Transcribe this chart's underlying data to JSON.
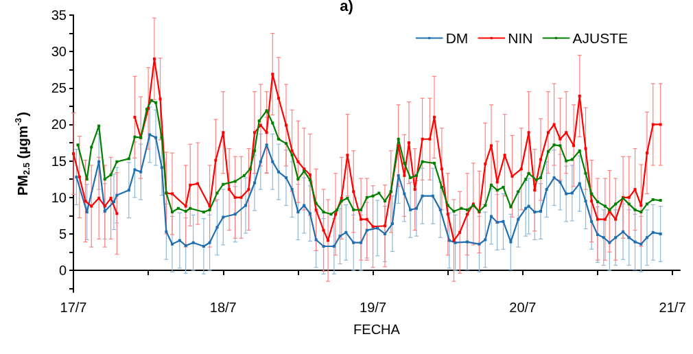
{
  "chart_data": {
    "type": "line",
    "title": "a)",
    "xlabel": "FECHA",
    "ylabel": "PM$_{2.5}$ (µgm$^{-3}$)",
    "xlim": [
      "--07-17T00:00",
      "--07-21T01:12"
    ],
    "xticks": [
      {
        "value": "--07-17",
        "label": "17/7"
      },
      {
        "value": "--07-17T12:00",
        "label": null
      },
      {
        "value": "--07-18",
        "label": "18/7"
      },
      {
        "value": "--07-18T12:00",
        "label": null
      },
      {
        "value": "--07-19",
        "label": "19/7"
      },
      {
        "value": "--07-19T12:00",
        "label": null
      },
      {
        "value": "--07-20",
        "label": "20/7"
      },
      {
        "value": "--07-20T12:00",
        "label": null
      },
      {
        "value": "--07-21",
        "label": "21/7"
      }
    ],
    "ylim": [
      -3,
      35
    ],
    "yticks": [
      {
        "value": -2.5,
        "label": null
      },
      0,
      {
        "value": 2.5,
        "label": null
      },
      5,
      {
        "value": 7.5,
        "label": null
      },
      10,
      {
        "value": 12.5,
        "label": null
      },
      15,
      {
        "value": 17.5,
        "label": null
      },
      20,
      {
        "value": 22.5,
        "label": null
      },
      25,
      {
        "value": 27.5,
        "label": null
      },
      30,
      {
        "value": 32.5,
        "label": null
      },
      35
    ],
    "grid": false,
    "legend": "top right",
    "marker": "square",
    "line_style": "solid",
    "series": [
      {
        "name": "DM",
        "color": "#1f6fb0",
        "x": [
          "--07-17T00:29",
          "--07-17T02:10",
          "--07-17T04:05",
          "--07-17T05:02",
          "--07-17T06:29",
          "--07-17T06:58",
          "--07-17T08:53",
          "--07-17T09:50",
          "--07-17T10:48",
          "--07-17T12:14",
          "--07-17T13:12",
          "--07-17T14:10",
          "--07-17T14:53",
          "--07-17T15:50",
          "--07-17T17:02",
          "--07-17T18:00",
          "--07-17T19:12",
          "--07-17T20:53",
          "--07-17T21:50",
          "--07-17T23:02",
          "--07-18T00:00",
          "--07-18T01:55",
          "--07-18T03:36",
          "--07-18T05:02",
          "--07-18T06:00",
          "--07-18T06:58",
          "--07-18T07:55",
          "--07-18T08:53",
          "--07-18T10:05",
          "--07-18T11:02",
          "--07-18T12:00",
          "--07-18T12:58",
          "--07-18T13:55",
          "--07-18T14:53",
          "--07-18T16:05",
          "--07-18T17:46",
          "--07-18T18:43",
          "--07-18T19:41",
          "--07-18T20:53",
          "--07-18T22:05",
          "--07-18T23:02",
          "--07-19T00:43",
          "--07-19T01:55",
          "--07-19T03:07",
          "--07-19T04:05",
          "--07-19T05:02",
          "--07-19T06:00",
          "--07-19T06:58",
          "--07-19T07:55",
          "--07-19T09:36",
          "--07-19T10:48",
          "--07-19T12:14",
          "--07-19T13:12",
          "--07-19T15:07",
          "--07-19T17:02",
          "--07-19T18:00",
          "--07-19T18:58",
          "--07-19T19:55",
          "--07-19T20:53",
          "--07-19T22:05",
          "--07-19T23:17",
          "--07-20T00:29",
          "--07-20T00:58",
          "--07-20T01:55",
          "--07-20T02:53",
          "--07-20T03:50",
          "--07-20T05:02",
          "--07-20T06:00",
          "--07-20T06:58",
          "--07-20T07:55",
          "--07-20T09:07",
          "--07-20T10:05",
          "--07-20T11:02",
          "--07-20T12:00",
          "--07-20T12:58",
          "--07-20T13:55",
          "--07-20T14:53",
          "--07-20T16:05",
          "--07-20T17:02",
          "--07-20T18:00",
          "--07-20T18:58",
          "--07-20T19:55",
          "--07-20T20:53",
          "--07-20T22:05"
        ],
        "values": [
          12.8,
          8.0,
          14.9,
          8.1,
          9.4,
          10.3,
          11.0,
          13.8,
          13.5,
          18.6,
          18.2,
          14.1,
          5.3,
          3.6,
          4.1,
          3.4,
          3.8,
          3.3,
          3.8,
          5.9,
          7.3,
          7.7,
          8.9,
          12.0,
          14.9,
          17.2,
          14.9,
          13.5,
          12.7,
          11.1,
          8.0,
          8.9,
          7.8,
          4.2,
          3.3,
          3.3,
          4.7,
          5.2,
          3.8,
          3.8,
          5.5,
          5.8,
          5.0,
          6.4,
          13.0,
          10.5,
          8.3,
          8.5,
          10.2,
          10.2,
          8.3,
          4.1,
          3.8,
          3.9,
          3.6,
          4.2,
          7.4,
          6.6,
          6.7,
          3.9,
          7.0,
          8.5,
          8.8,
          8.0,
          8.1,
          11.1,
          12.7,
          12.1,
          10.5,
          10.6,
          11.9,
          9.5,
          6.7,
          4.9,
          4.5,
          3.8,
          4.5,
          5.3,
          4.5,
          3.9,
          3.6,
          4.5,
          5.2,
          5.0
        ],
        "errors": [
          3.8,
          3.8,
          3.8,
          3.8,
          3.8,
          3.8,
          3.8,
          3.8,
          3.8,
          3.8,
          3.8,
          3.8,
          3.8,
          3.8,
          3.8,
          3.8,
          3.8,
          3.8,
          3.8,
          3.8,
          3.8,
          3.8,
          3.8,
          3.8,
          3.8,
          3.8,
          3.8,
          3.8,
          3.8,
          3.8,
          3.8,
          3.8,
          3.8,
          3.8,
          3.8,
          3.8,
          3.8,
          3.8,
          3.8,
          3.8,
          3.8,
          3.8,
          3.8,
          3.8,
          3.8,
          3.8,
          3.8,
          3.8,
          3.8,
          3.8,
          3.8,
          3.8,
          3.8,
          3.8,
          3.8,
          3.8,
          3.8,
          3.8,
          3.8,
          3.8,
          3.8,
          3.8,
          3.8,
          3.8,
          3.8,
          3.8,
          3.8,
          3.8,
          3.8,
          3.8,
          3.8,
          3.8,
          3.8,
          3.8,
          3.8,
          3.8,
          3.8,
          3.8,
          3.8,
          3.8,
          3.8,
          3.8,
          3.8,
          3.8
        ]
      },
      {
        "name": "NIN",
        "color": "#ff0000",
        "x": [
          "--07-17T00:00",
          "--07-17T00:58",
          "--07-17T01:55",
          "--07-17T02:53",
          "--07-17T04:05",
          "--07-17T05:02",
          "--07-17T06:00",
          "--07-17T06:58",
          "--07-17T07:55",
          "--07-17T09:50",
          "--07-17T10:48",
          "--07-17T12:00",
          "--07-17T12:58",
          "--07-17T13:55",
          "--07-17T14:53",
          "--07-17T15:50",
          "--07-17T18:00",
          "--07-17T18:43",
          "--07-17T19:55",
          "--07-17T21:50",
          "--07-17T22:48",
          "--07-18T00:00",
          "--07-18T00:58",
          "--07-18T01:55",
          "--07-18T02:53",
          "--07-18T04:05",
          "--07-18T05:02",
          "--07-18T06:00",
          "--07-18T06:58",
          "--07-18T07:55",
          "--07-18T08:53",
          "--07-18T10:05",
          "--07-18T11:02",
          "--07-18T12:00",
          "--07-18T12:58",
          "--07-18T13:55",
          "--07-18T14:53",
          "--07-18T16:05",
          "--07-18T16:48",
          "--07-18T18:00",
          "--07-18T18:58",
          "--07-18T19:55",
          "--07-18T20:53",
          "--07-18T22:05",
          "--07-18T23:02",
          "--07-19T00:00",
          "--07-19T01:55",
          "--07-19T02:53",
          "--07-19T04:05",
          "--07-19T05:02",
          "--07-19T05:46",
          "--07-19T06:43",
          "--07-19T07:55",
          "--07-19T09:07",
          "--07-19T09:50",
          "--07-19T11:02",
          "--07-19T12:00",
          "--07-19T12:58",
          "--07-19T13:55",
          "--07-19T15:07",
          "--07-19T16:05",
          "--07-19T17:02",
          "--07-19T18:00",
          "--07-19T18:58",
          "--07-19T19:55",
          "--07-19T21:07",
          "--07-19T22:19",
          "--07-19T23:46",
          "--07-20T00:58",
          "--07-20T01:55",
          "--07-20T02:53",
          "--07-20T04:05",
          "--07-20T05:02",
          "--07-20T06:00",
          "--07-20T06:58",
          "--07-20T08:10",
          "--07-20T09:07",
          "--07-20T10:05",
          "--07-20T11:02",
          "--07-20T12:00",
          "--07-20T13:12",
          "--07-20T13:55",
          "--07-20T14:53",
          "--07-20T16:05",
          "--07-20T17:02",
          "--07-20T18:00",
          "--07-20T18:58",
          "--07-20T19:55",
          "--07-20T20:53",
          "--07-20T22:05"
        ],
        "values": [
          16.0,
          12.8,
          9.5,
          8.8,
          9.9,
          8.8,
          9.9,
          7.8,
          null,
          21.0,
          18.2,
          22.2,
          29.0,
          23.5,
          10.6,
          10.5,
          8.8,
          11.7,
          11.9,
          8.8,
          15.1,
          18.9,
          11.1,
          10.0,
          10.0,
          11.1,
          18.9,
          19.9,
          18.9,
          26.9,
          23.6,
          19.9,
          16.4,
          14.9,
          13.9,
          13.1,
          8.3,
          5.5,
          4.1,
          7.7,
          9.9,
          15.8,
          10.8,
          7.0,
          7.0,
          6.0,
          6.1,
          10.8,
          17.1,
          13.0,
          17.5,
          11.1,
          18.0,
          18.0,
          21.0,
          13.9,
          7.7,
          4.1,
          5.2,
          7.7,
          9.1,
          8.0,
          14.6,
          17.1,
          12.1,
          15.8,
          12.9,
          13.9,
          18.9,
          11.0,
          15.2,
          18.9,
          20.0,
          18.0,
          18.9,
          17.1,
          23.9,
          16.7,
          9.5,
          7.0,
          7.0,
          8.1,
          7.0,
          10.0,
          10.0,
          11.1,
          8.9,
          16.1,
          20.0,
          20.0
        ],
        "errors": [
          5.6,
          5.6,
          5.6,
          5.6,
          5.6,
          5.6,
          5.6,
          5.6,
          null,
          5.6,
          5.6,
          5.6,
          5.6,
          5.6,
          5.6,
          5.6,
          5.6,
          5.6,
          5.6,
          5.6,
          5.6,
          5.6,
          5.6,
          5.6,
          5.6,
          5.6,
          5.6,
          5.6,
          5.6,
          5.6,
          5.6,
          5.6,
          5.6,
          5.6,
          5.6,
          5.6,
          5.6,
          5.6,
          5.6,
          5.6,
          5.6,
          5.6,
          5.6,
          5.6,
          5.6,
          5.6,
          5.6,
          5.6,
          5.6,
          5.6,
          5.6,
          5.6,
          5.6,
          5.6,
          5.6,
          5.6,
          5.6,
          5.6,
          5.6,
          5.6,
          5.6,
          5.6,
          5.6,
          5.6,
          5.6,
          5.6,
          5.6,
          5.6,
          5.6,
          5.6,
          5.6,
          5.6,
          5.6,
          5.6,
          5.6,
          5.6,
          5.6,
          5.6,
          5.6,
          5.6,
          5.6,
          5.6,
          5.6,
          5.6,
          5.6,
          5.6,
          5.6,
          5.6,
          5.6,
          5.6
        ]
      },
      {
        "name": "AJUSTE",
        "color": "#008000",
        "x": [
          "--07-17T00:43",
          "--07-17T02:10",
          "--07-17T02:53",
          "--07-17T04:05",
          "--07-17T05:02",
          "--07-17T06:00",
          "--07-17T06:58",
          "--07-17T08:53",
          "--07-17T09:50",
          "--07-17T10:48",
          "--07-17T11:46",
          "--07-17T12:29",
          "--07-17T13:12",
          "--07-17T14:10",
          "--07-17T14:53",
          "--07-17T15:50",
          "--07-17T16:48",
          "--07-17T18:00",
          "--07-17T18:43",
          "--07-17T20:53",
          "--07-17T21:50",
          "--07-17T23:02",
          "--07-18T00:00",
          "--07-18T01:55",
          "--07-18T03:22",
          "--07-18T04:19",
          "--07-18T05:02",
          "--07-18T05:46",
          "--07-18T06:58",
          "--07-18T07:55",
          "--07-18T08:53",
          "--07-18T10:05",
          "--07-18T11:02",
          "--07-18T12:00",
          "--07-18T12:58",
          "--07-18T13:55",
          "--07-18T14:53",
          "--07-18T16:05",
          "--07-18T17:17",
          "--07-18T18:14",
          "--07-18T18:58",
          "--07-18T19:55",
          "--07-18T20:53",
          "--07-18T22:05",
          "--07-18T23:02",
          "--07-19T00:00",
          "--07-19T00:58",
          "--07-19T01:55",
          "--07-19T02:53",
          "--07-19T04:05",
          "--07-19T05:02",
          "--07-19T06:00",
          "--07-19T06:58",
          "--07-19T07:55",
          "--07-19T09:50",
          "--07-19T11:02",
          "--07-19T12:00",
          "--07-19T12:58",
          "--07-19T14:10",
          "--07-19T15:07",
          "--07-19T16:05",
          "--07-19T17:02",
          "--07-19T18:00",
          "--07-19T18:58",
          "--07-19T19:55",
          "--07-19T20:53",
          "--07-19T22:05",
          "--07-19T23:17",
          "--07-20T00:29",
          "--07-20T00:58",
          "--07-20T02:10",
          "--07-20T02:53",
          "--07-20T04:05",
          "--07-20T05:02",
          "--07-20T06:00",
          "--07-20T06:58",
          "--07-20T07:55",
          "--07-20T09:07",
          "--07-20T10:05",
          "--07-20T11:02",
          "--07-20T12:00",
          "--07-20T13:12",
          "--07-20T13:55",
          "--07-20T14:53",
          "--07-20T16:05",
          "--07-20T17:02",
          "--07-20T18:00",
          "--07-20T18:58",
          "--07-20T19:55",
          "--07-20T20:53",
          "--07-20T22:05"
        ],
        "values": [
          17.2,
          12.5,
          16.9,
          19.8,
          12.5,
          13.1,
          14.9,
          15.3,
          18.3,
          18.2,
          22.1,
          23.3,
          23.0,
          18.2,
          10.6,
          8.0,
          8.5,
          8.1,
          8.5,
          8.0,
          8.3,
          10.6,
          11.8,
          12.2,
          13.0,
          13.9,
          16.4,
          20.5,
          21.9,
          20.2,
          18.0,
          17.4,
          15.8,
          12.5,
          13.6,
          12.4,
          9.2,
          8.0,
          7.7,
          8.3,
          9.5,
          9.9,
          8.3,
          8.3,
          10.0,
          10.2,
          10.6,
          9.5,
          10.8,
          18.0,
          14.7,
          12.7,
          13.0,
          14.9,
          14.7,
          11.4,
          8.9,
          8.1,
          8.5,
          8.3,
          8.9,
          8.1,
          8.9,
          11.7,
          11.0,
          11.4,
          8.7,
          10.8,
          12.5,
          13.3,
          12.4,
          12.7,
          16.3,
          17.2,
          17.1,
          15.0,
          15.2,
          16.4,
          13.3,
          10.5,
          9.4,
          8.8,
          8.3,
          9.1,
          9.9,
          9.1,
          8.3,
          8.0,
          9.1,
          9.7,
          9.6
        ]
      }
    ]
  }
}
